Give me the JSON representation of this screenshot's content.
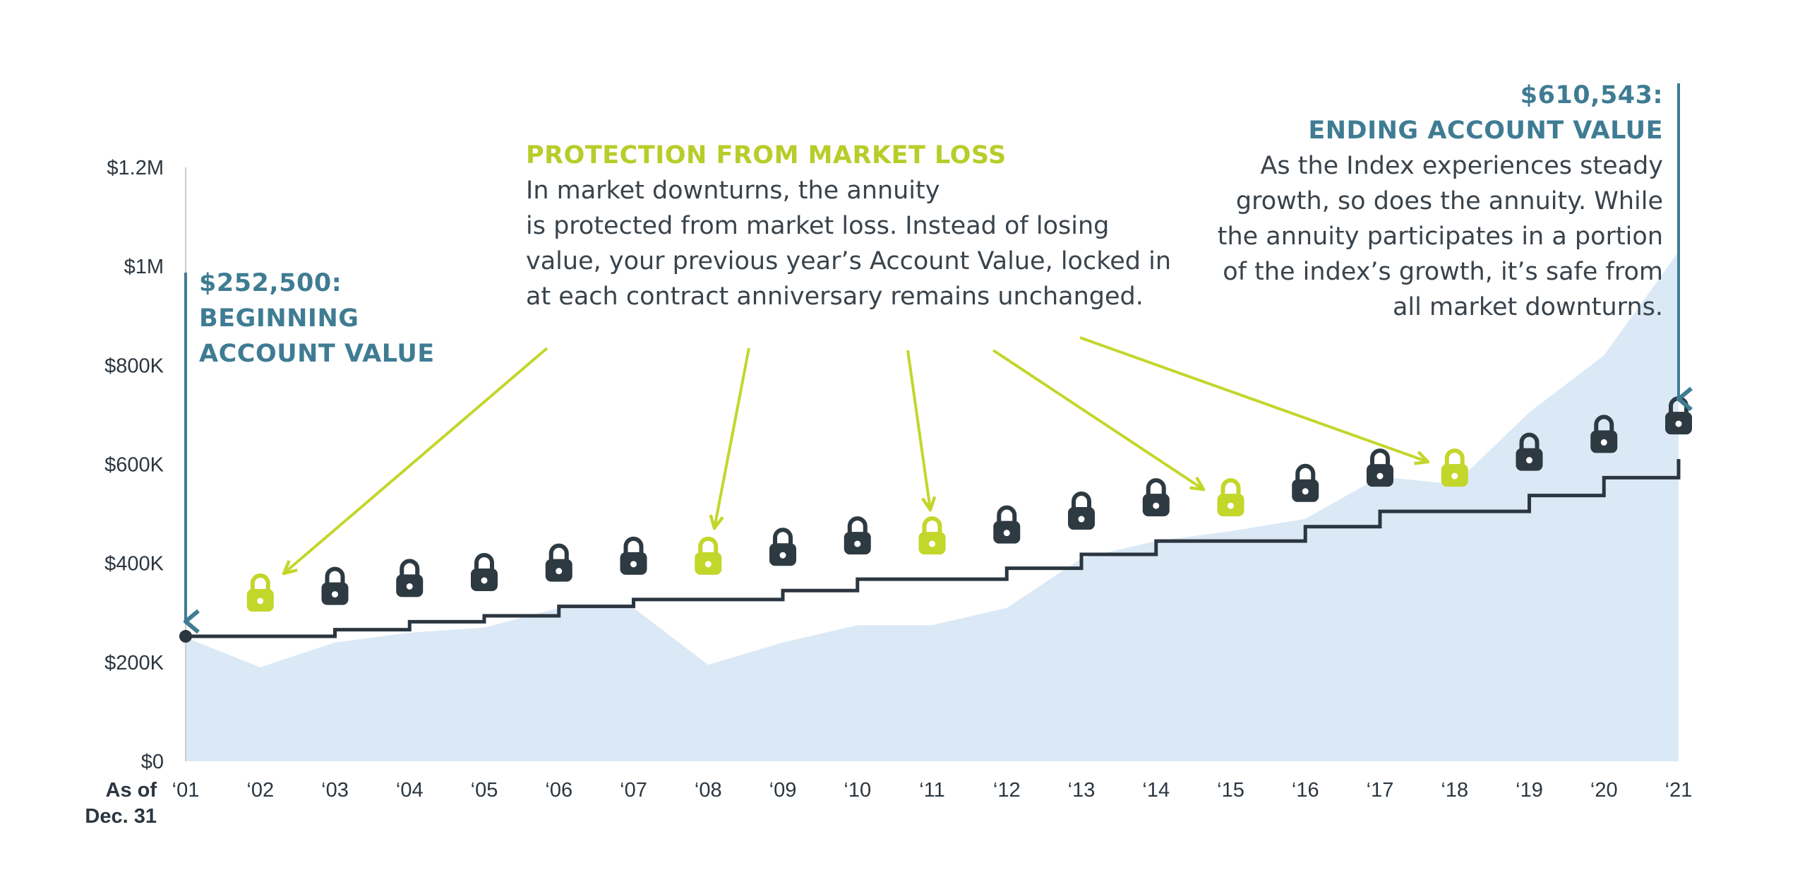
{
  "chart_data": {
    "type": "area",
    "x_title": [
      "As of",
      "Dec. 31"
    ],
    "categories": [
      "‘01",
      "‘02",
      "‘03",
      "‘04",
      "‘05",
      "‘06",
      "‘07",
      "‘08",
      "‘09",
      "‘10",
      "‘11",
      "‘12",
      "‘13",
      "‘14",
      "‘15",
      "‘16",
      "‘17",
      "‘18",
      "‘19",
      "‘20",
      "‘21"
    ],
    "y_ticks": [
      {
        "value": 0,
        "label": "$0"
      },
      {
        "value": 200000,
        "label": "$200K"
      },
      {
        "value": 400000,
        "label": "$400K"
      },
      {
        "value": 600000,
        "label": "$600K"
      },
      {
        "value": 800000,
        "label": "$800K"
      },
      {
        "value": 1000000,
        "label": "$1M"
      },
      {
        "value": 1200000,
        "label": "$1.2M"
      }
    ],
    "ylim": [
      0,
      1200000
    ],
    "index_area": {
      "color": "#dbe9f6",
      "values": [
        250000,
        190000,
        240000,
        260000,
        270000,
        310000,
        310000,
        195000,
        240000,
        275000,
        275000,
        310000,
        410000,
        445000,
        465000,
        490000,
        575000,
        560000,
        705000,
        820000,
        1030000
      ]
    },
    "account_value_step": {
      "color": "#2b3640",
      "values": [
        252500,
        252500,
        266000,
        282000,
        294000,
        313000,
        327000,
        327000,
        345000,
        368000,
        368000,
        390000,
        418000,
        445000,
        445000,
        474000,
        505000,
        505000,
        537000,
        573000,
        610543
      ]
    },
    "locks": {
      "dark_color": "#2e3a42",
      "highlight_color": "#c3d62a",
      "highlight_years": [
        "‘02",
        "‘08",
        "‘11",
        "‘15",
        "‘18"
      ]
    },
    "grid": false
  },
  "annotations": {
    "beginning": {
      "value_label": "$252,500:",
      "label_line1": "BEGINNING",
      "label_line2": "ACCOUNT VALUE",
      "color": "#3f7c93"
    },
    "protection": {
      "heading": "PROTECTION FROM MARKET LOSS",
      "lines": [
        "In market downturns, the annuity",
        "is protected from market loss. Instead of losing",
        "value, your previous year’s Account Value, locked in",
        "at each contract anniversary remains unchanged."
      ],
      "color": "#b7cd2a"
    },
    "ending": {
      "value_label": "$610,543:",
      "label": "ENDING ACCOUNT VALUE",
      "lines": [
        "As the Index experiences steady",
        "growth, so does the annuity. While",
        "the annuity participates in a portion",
        "of the index’s growth, it’s safe from",
        "all market downturns."
      ],
      "color": "#3f7c93"
    }
  },
  "icons": {
    "lock": "padlock-icon",
    "arrow": "arrow-icon"
  }
}
